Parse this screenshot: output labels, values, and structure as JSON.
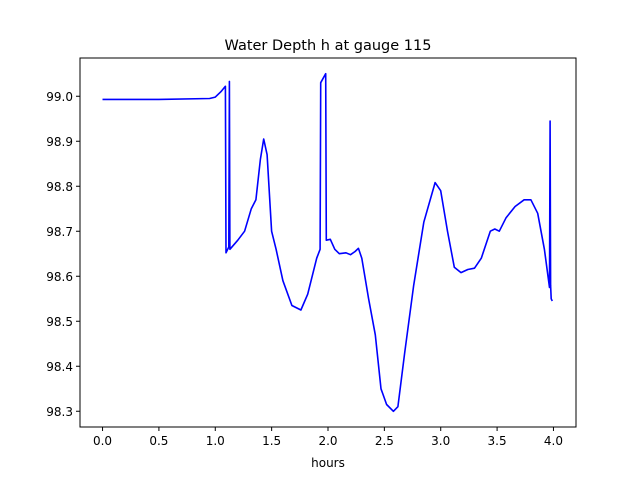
{
  "chart_data": {
    "type": "line",
    "title": "Water Depth h at gauge 115",
    "xlabel": "hours",
    "ylabel": "",
    "xlim": [
      -0.2,
      4.2
    ],
    "ylim": [
      98.265,
      99.085
    ],
    "grid": false,
    "xticks": [
      0.0,
      0.5,
      1.0,
      1.5,
      2.0,
      2.5,
      3.0,
      3.5,
      4.0
    ],
    "xtick_labels": [
      "0.0",
      "0.5",
      "1.0",
      "1.5",
      "2.0",
      "2.5",
      "3.0",
      "3.5",
      "4.0"
    ],
    "yticks": [
      98.3,
      98.4,
      98.5,
      98.6,
      98.7,
      98.8,
      98.9,
      99.0
    ],
    "ytick_labels": [
      "98.3",
      "98.4",
      "98.5",
      "98.6",
      "98.7",
      "98.8",
      "98.9",
      "99.0"
    ],
    "series": [
      {
        "name": "h",
        "color": "#0000ff",
        "x": [
          0,
          0.5,
          0.95,
          1.0,
          1.05,
          1.09,
          1.095,
          1.12,
          1.125,
          1.13,
          1.2,
          1.26,
          1.32,
          1.36,
          1.4,
          1.43,
          1.46,
          1.5,
          1.54,
          1.6,
          1.68,
          1.76,
          1.82,
          1.9,
          1.93,
          1.935,
          1.98,
          1.985,
          2.02,
          2.06,
          2.1,
          2.16,
          2.2,
          2.24,
          2.27,
          2.3,
          2.36,
          2.42,
          2.47,
          2.52,
          2.58,
          2.62,
          2.68,
          2.76,
          2.85,
          2.95,
          3.0,
          3.06,
          3.12,
          3.18,
          3.24,
          3.3,
          3.36,
          3.44,
          3.48,
          3.52,
          3.58,
          3.66,
          3.74,
          3.8,
          3.86,
          3.92,
          3.96,
          3.965,
          3.97,
          3.975,
          3.98,
          3.99
        ],
        "y": [
          98.993,
          98.993,
          98.995,
          98.998,
          99.01,
          99.022,
          98.652,
          98.665,
          99.033,
          98.66,
          98.68,
          98.7,
          98.75,
          98.77,
          98.86,
          98.905,
          98.87,
          98.7,
          98.66,
          98.59,
          98.535,
          98.525,
          98.56,
          98.64,
          98.66,
          99.03,
          99.05,
          98.68,
          98.682,
          98.66,
          98.65,
          98.652,
          98.648,
          98.655,
          98.662,
          98.64,
          98.55,
          98.47,
          98.35,
          98.315,
          98.3,
          98.31,
          98.43,
          98.58,
          98.72,
          98.808,
          98.79,
          98.7,
          98.62,
          98.608,
          98.615,
          98.618,
          98.64,
          98.7,
          98.705,
          98.7,
          98.73,
          98.755,
          98.77,
          98.77,
          98.74,
          98.66,
          98.585,
          98.575,
          98.945,
          98.58,
          98.55,
          98.545
        ]
      }
    ]
  }
}
